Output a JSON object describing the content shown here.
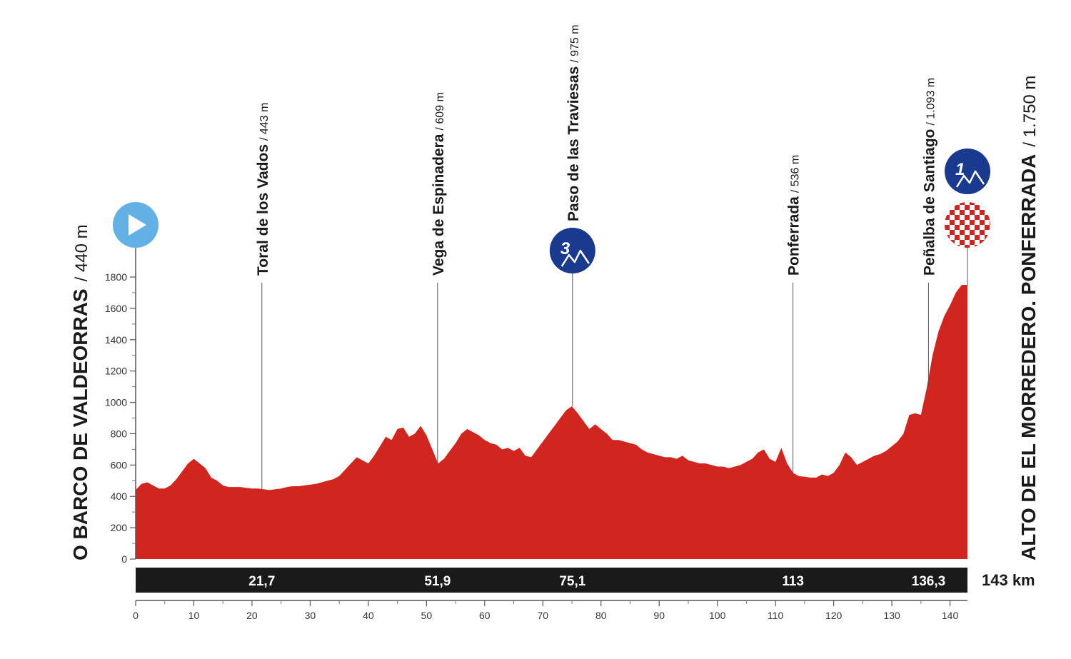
{
  "chart_data": {
    "type": "area",
    "title": "",
    "xlabel": "",
    "ylabel": "",
    "xlim": [
      0,
      143
    ],
    "ylim": [
      0,
      1800
    ],
    "x_ticks": [
      0,
      10,
      20,
      30,
      40,
      50,
      60,
      70,
      80,
      90,
      100,
      110,
      120,
      130,
      140
    ],
    "y_ticks": [
      0,
      200,
      400,
      600,
      800,
      1000,
      1200,
      1400,
      1600,
      1800
    ],
    "grid": false,
    "fill_color": "#d0261f",
    "x": [
      0,
      1,
      2,
      3,
      4,
      5,
      6,
      7,
      8,
      9,
      10,
      11,
      12,
      13,
      14,
      15,
      16,
      17,
      18,
      19,
      20,
      21,
      22,
      23,
      24,
      25,
      26,
      27,
      28,
      29,
      30,
      31,
      32,
      33,
      34,
      35,
      36,
      37,
      38,
      39,
      40,
      41,
      42,
      43,
      44,
      45,
      46,
      47,
      48,
      49,
      50,
      51,
      52,
      53,
      54,
      55,
      56,
      57,
      58,
      59,
      60,
      61,
      62,
      63,
      64,
      65,
      66,
      67,
      68,
      69,
      70,
      71,
      72,
      73,
      74,
      75,
      76,
      77,
      78,
      79,
      80,
      81,
      82,
      83,
      84,
      85,
      86,
      87,
      88,
      89,
      90,
      91,
      92,
      93,
      94,
      95,
      96,
      97,
      98,
      99,
      100,
      101,
      102,
      103,
      104,
      105,
      106,
      107,
      108,
      109,
      110,
      111,
      112,
      113,
      114,
      115,
      116,
      117,
      118,
      119,
      120,
      121,
      122,
      123,
      124,
      125,
      126,
      127,
      128,
      129,
      130,
      131,
      132,
      133,
      134,
      135,
      136,
      137,
      138,
      139,
      140,
      141,
      142,
      143
    ],
    "y": [
      440,
      480,
      490,
      470,
      450,
      450,
      470,
      510,
      560,
      610,
      640,
      610,
      580,
      520,
      500,
      470,
      460,
      460,
      460,
      455,
      450,
      450,
      445,
      440,
      445,
      450,
      460,
      465,
      465,
      470,
      475,
      480,
      490,
      500,
      510,
      530,
      570,
      610,
      650,
      630,
      610,
      660,
      720,
      780,
      760,
      830,
      840,
      780,
      800,
      850,
      790,
      700,
      610,
      640,
      690,
      740,
      800,
      830,
      810,
      790,
      760,
      740,
      730,
      700,
      710,
      690,
      710,
      660,
      650,
      700,
      750,
      800,
      850,
      900,
      950,
      975,
      930,
      880,
      830,
      860,
      830,
      800,
      760,
      760,
      750,
      740,
      730,
      700,
      680,
      670,
      660,
      650,
      650,
      640,
      660,
      630,
      620,
      610,
      610,
      600,
      590,
      590,
      580,
      590,
      600,
      620,
      640,
      680,
      700,
      640,
      620,
      710,
      610,
      550,
      530,
      525,
      520,
      520,
      540,
      530,
      550,
      600,
      680,
      650,
      600,
      620,
      640,
      660,
      670,
      690,
      720,
      750,
      800,
      920,
      930,
      920,
      1093,
      1300,
      1450,
      1550,
      1620,
      1700,
      1750,
      1750
    ]
  },
  "start": {
    "name": "O BARCO DE VALDEORRAS",
    "altitude": "/ 440 m"
  },
  "finish": {
    "name": "ALTO DE EL MORREDERO. PONFERRADA",
    "altitude": "/ 1.750 m"
  },
  "waypoints": [
    {
      "km": 21.7,
      "km_label": "21,7",
      "name": "Toral de los Vados",
      "altitude": "/ 443 m",
      "elev": 443
    },
    {
      "km": 51.9,
      "km_label": "51,9",
      "name": "Vega de Espinadera",
      "altitude": "/ 609 m",
      "elev": 609
    },
    {
      "km": 75.1,
      "km_label": "75,1",
      "name": "Paso de las Traviesas",
      "altitude": "/ 975 m",
      "elev": 975,
      "category": "3"
    },
    {
      "km": 113,
      "km_label": "113",
      "name": "Ponferrada",
      "altitude": "/ 536 m",
      "elev": 536
    },
    {
      "km": 136.3,
      "km_label": "136,3",
      "name": "Peñalba de Santiago",
      "altitude": "/ 1.093 m",
      "elev": 1093
    }
  ],
  "finish_category": "1",
  "total_distance_label": "143 km",
  "icons": {
    "start": "play-icon",
    "climb": "mountain-climb-icon",
    "finish": "checkered-flag-icon"
  },
  "colors": {
    "profile": "#d0261f",
    "category_badge": "#1a3a8f",
    "start_badge": "#62b0e4",
    "distance_bar": "#1a1a1a"
  }
}
